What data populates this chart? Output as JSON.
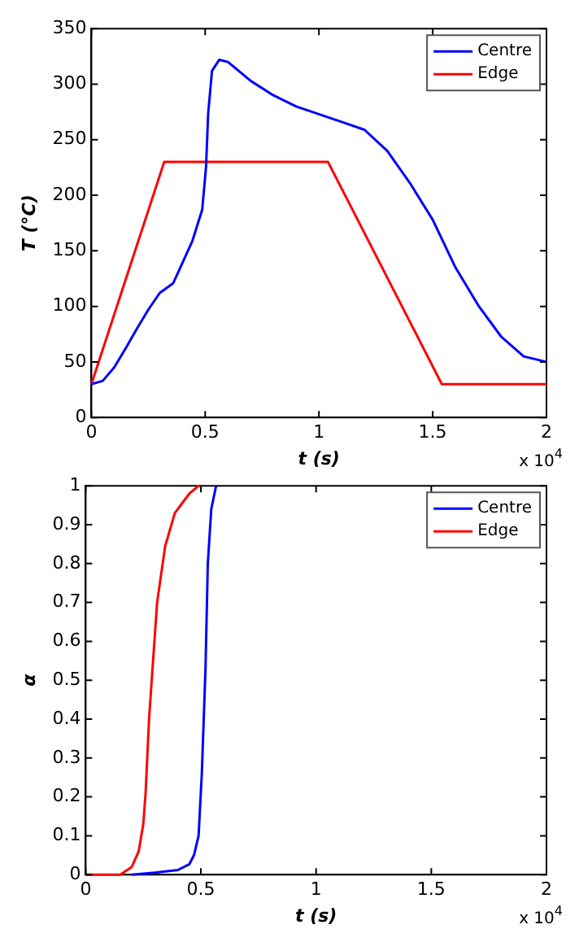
{
  "chart_data": [
    {
      "type": "line",
      "xlabel": "t (s)",
      "ylabel": "T (°C)",
      "xlim": [
        0,
        2
      ],
      "xticks": [
        0,
        0.5,
        1,
        1.5,
        2
      ],
      "ylim": [
        0,
        350
      ],
      "yticks": [
        0,
        50,
        100,
        150,
        200,
        250,
        300,
        350
      ],
      "grid": false,
      "legend": "top right",
      "annotations": [
        "x 10$^{4}$"
      ],
      "series": [
        {
          "name": "Centre",
          "color": "#0000ff",
          "x": [
            0,
            0.05,
            0.1,
            0.15,
            0.2,
            0.25,
            0.3,
            0.36,
            0.444,
            0.487,
            0.504,
            0.513,
            0.53,
            0.562,
            0.6,
            0.7,
            0.8,
            0.9,
            1.0,
            1.1,
            1.2,
            1.3,
            1.4,
            1.5,
            1.6,
            1.7,
            1.8,
            1.9,
            2.0
          ],
          "values": [
            30,
            33,
            45,
            62,
            80,
            97,
            112,
            121,
            159,
            187,
            226,
            273,
            312,
            322,
            320,
            303,
            290,
            280,
            273,
            266,
            259,
            240,
            211,
            178,
            135,
            101,
            73,
            55,
            50
          ]
        },
        {
          "name": "Edge",
          "color": "#ff0000",
          "x": [
            0,
            0.32,
            1.04,
            1.54,
            2
          ],
          "values": [
            30,
            230,
            230,
            30,
            30
          ]
        }
      ]
    },
    {
      "type": "line",
      "xlabel": "t (s)",
      "ylabel": "α",
      "xlim": [
        0,
        2
      ],
      "xticks": [
        0,
        0.5,
        1,
        1.5,
        2
      ],
      "ylim": [
        0,
        1
      ],
      "yticks": [
        0,
        0.1,
        0.2,
        0.3,
        0.4,
        0.5,
        0.6,
        0.7,
        0.8,
        0.9,
        1
      ],
      "grid": false,
      "legend": "top right",
      "annotations": [
        "x 10$^{4}$"
      ],
      "series": [
        {
          "name": "Centre",
          "color": "#0000ff",
          "x": [
            0.2,
            0.3,
            0.4,
            0.45,
            0.47,
            0.49,
            0.504,
            0.52,
            0.53,
            0.545,
            0.566
          ],
          "values": [
            0,
            0.005,
            0.012,
            0.027,
            0.05,
            0.1,
            0.26,
            0.53,
            0.8,
            0.94,
            1
          ]
        },
        {
          "name": "Edge",
          "color": "#ff0000",
          "x": [
            0,
            0.15,
            0.2,
            0.23,
            0.25,
            0.26,
            0.275,
            0.29,
            0.31,
            0.345,
            0.387,
            0.45,
            0.49,
            0.5
          ],
          "values": [
            0,
            0,
            0.02,
            0.06,
            0.13,
            0.21,
            0.4,
            0.53,
            0.7,
            0.845,
            0.93,
            0.98,
            1,
            1
          ]
        }
      ]
    }
  ]
}
